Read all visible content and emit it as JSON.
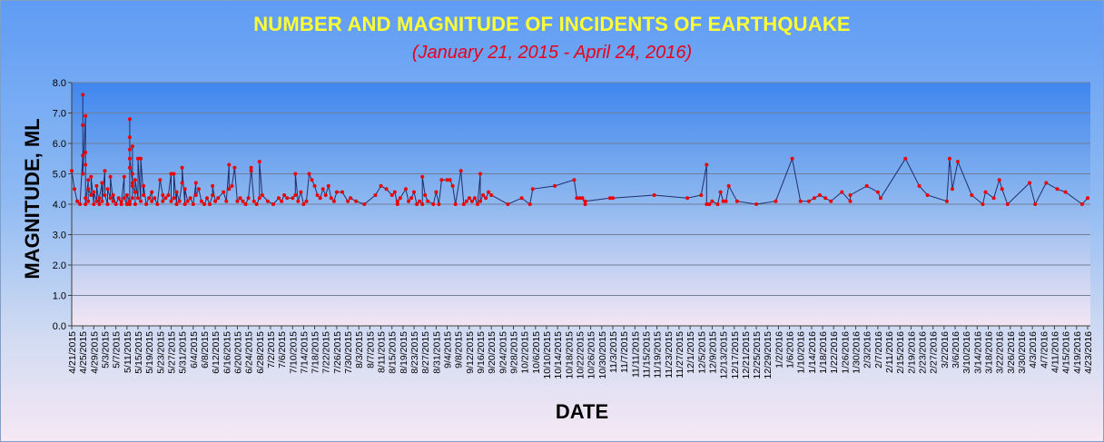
{
  "chart_data": {
    "type": "line",
    "title": "NUMBER AND MAGNITUDE OF INCIDENTS OF EARTHQUAKE",
    "subtitle": "(January 21, 2015 - April 24, 2016)",
    "xlabel": "DATE",
    "ylabel": "MAGNITUDE, ML",
    "ylim": [
      0,
      8
    ],
    "yticks": [
      "0.0",
      "1.0",
      "2.0",
      "3.0",
      "4.0",
      "5.0",
      "6.0",
      "7.0",
      "8.0"
    ],
    "xlim": [
      "2015-04-21",
      "2016-04-24"
    ],
    "xtick_start": "2015-04-21",
    "xtick_step_days": 4,
    "grid": true,
    "legend": "none",
    "colors": {
      "line": "#1f2f6b",
      "marker": "#ee0000",
      "grid": "#6f7f99",
      "axis": "#404040",
      "plot_top": "#3f86ee"
    },
    "series": [
      {
        "points": [
          [
            "2015-04-21",
            5.1
          ],
          [
            "2015-04-22",
            4.5
          ],
          [
            "2015-04-23",
            4.1
          ],
          [
            "2015-04-24",
            4.0
          ],
          [
            "2015-04-25",
            5.6
          ],
          [
            "2015-04-25",
            7.6
          ],
          [
            "2015-04-25",
            6.6
          ],
          [
            "2015-04-25",
            5.0
          ],
          [
            "2015-04-26",
            6.9
          ],
          [
            "2015-04-26",
            5.3
          ],
          [
            "2015-04-26",
            4.2
          ],
          [
            "2015-04-26",
            5.7
          ],
          [
            "2015-04-26",
            4.0
          ],
          [
            "2015-04-27",
            4.8
          ],
          [
            "2015-04-27",
            4.1
          ],
          [
            "2015-04-27",
            4.5
          ],
          [
            "2015-04-28",
            4.3
          ],
          [
            "2015-04-28",
            4.9
          ],
          [
            "2015-04-29",
            4.0
          ],
          [
            "2015-04-29",
            4.4
          ],
          [
            "2015-04-30",
            4.1
          ],
          [
            "2015-04-30",
            4.6
          ],
          [
            "2015-05-01",
            4.0
          ],
          [
            "2015-05-01",
            4.2
          ],
          [
            "2015-05-02",
            4.7
          ],
          [
            "2015-05-02",
            4.1
          ],
          [
            "2015-05-03",
            5.1
          ],
          [
            "2015-05-03",
            4.3
          ],
          [
            "2015-05-04",
            4.0
          ],
          [
            "2015-05-04",
            4.5
          ],
          [
            "2015-05-05",
            4.2
          ],
          [
            "2015-05-05",
            4.9
          ],
          [
            "2015-05-06",
            4.1
          ],
          [
            "2015-05-06",
            4.3
          ],
          [
            "2015-05-07",
            4.0
          ],
          [
            "2015-05-08",
            4.2
          ],
          [
            "2015-05-09",
            4.0
          ],
          [
            "2015-05-09",
            4.1
          ],
          [
            "2015-05-10",
            4.9
          ],
          [
            "2015-05-10",
            4.2
          ],
          [
            "2015-05-11",
            4.0
          ],
          [
            "2015-05-11",
            4.3
          ],
          [
            "2015-05-12",
            4.1
          ],
          [
            "2015-05-12",
            6.8
          ],
          [
            "2015-05-12",
            5.2
          ],
          [
            "2015-05-12",
            4.0
          ],
          [
            "2015-05-12",
            6.2
          ],
          [
            "2015-05-12",
            5.8
          ],
          [
            "2015-05-12",
            5.5
          ],
          [
            "2015-05-13",
            4.7
          ],
          [
            "2015-05-13",
            4.2
          ],
          [
            "2015-05-13",
            5.9
          ],
          [
            "2015-05-13",
            5.0
          ],
          [
            "2015-05-13",
            4.6
          ],
          [
            "2015-05-14",
            4.4
          ],
          [
            "2015-05-14",
            4.0
          ],
          [
            "2015-05-14",
            4.8
          ],
          [
            "2015-05-15",
            4.2
          ],
          [
            "2015-05-15",
            5.5
          ],
          [
            "2015-05-16",
            4.1
          ],
          [
            "2015-05-16",
            5.5
          ],
          [
            "2015-05-17",
            4.3
          ],
          [
            "2015-05-17",
            4.6
          ],
          [
            "2015-05-18",
            4.0
          ],
          [
            "2015-05-19",
            4.2
          ],
          [
            "2015-05-20",
            4.4
          ],
          [
            "2015-05-20",
            4.1
          ],
          [
            "2015-05-21",
            4.2
          ],
          [
            "2015-05-22",
            4.0
          ],
          [
            "2015-05-23",
            4.8
          ],
          [
            "2015-05-24",
            4.3
          ],
          [
            "2015-05-24",
            4.1
          ],
          [
            "2015-05-25",
            4.2
          ],
          [
            "2015-05-26",
            4.3
          ],
          [
            "2015-05-27",
            5.0
          ],
          [
            "2015-05-27",
            4.1
          ],
          [
            "2015-05-28",
            4.2
          ],
          [
            "2015-05-28",
            5.0
          ],
          [
            "2015-05-29",
            4.0
          ],
          [
            "2015-05-29",
            4.4
          ],
          [
            "2015-05-30",
            4.1
          ],
          [
            "2015-05-31",
            4.7
          ],
          [
            "2015-05-31",
            5.2
          ],
          [
            "2015-06-01",
            4.0
          ],
          [
            "2015-06-01",
            4.5
          ],
          [
            "2015-06-02",
            4.1
          ],
          [
            "2015-06-03",
            4.2
          ],
          [
            "2015-06-04",
            4.0
          ],
          [
            "2015-06-05",
            4.7
          ],
          [
            "2015-06-05",
            4.3
          ],
          [
            "2015-06-06",
            4.5
          ],
          [
            "2015-06-07",
            4.1
          ],
          [
            "2015-06-08",
            4.0
          ],
          [
            "2015-06-09",
            4.2
          ],
          [
            "2015-06-10",
            4.0
          ],
          [
            "2015-06-11",
            4.3
          ],
          [
            "2015-06-11",
            4.6
          ],
          [
            "2015-06-12",
            4.1
          ],
          [
            "2015-06-13",
            4.2
          ],
          [
            "2015-06-15",
            4.4
          ],
          [
            "2015-06-16",
            4.1
          ],
          [
            "2015-06-17",
            5.3
          ],
          [
            "2015-06-17",
            4.5
          ],
          [
            "2015-06-18",
            4.6
          ],
          [
            "2015-06-19",
            5.2
          ],
          [
            "2015-06-20",
            4.1
          ],
          [
            "2015-06-21",
            4.2
          ],
          [
            "2015-06-22",
            4.1
          ],
          [
            "2015-06-23",
            4.0
          ],
          [
            "2015-06-24",
            4.2
          ],
          [
            "2015-06-25",
            5.1
          ],
          [
            "2015-06-25",
            5.2
          ],
          [
            "2015-06-26",
            4.1
          ],
          [
            "2015-06-27",
            4.0
          ],
          [
            "2015-06-28",
            4.2
          ],
          [
            "2015-06-28",
            5.4
          ],
          [
            "2015-06-29",
            4.3
          ],
          [
            "2015-07-01",
            4.1
          ],
          [
            "2015-07-03",
            4.0
          ],
          [
            "2015-07-05",
            4.2
          ],
          [
            "2015-07-06",
            4.1
          ],
          [
            "2015-07-07",
            4.3
          ],
          [
            "2015-07-08",
            4.2
          ],
          [
            "2015-07-10",
            4.2
          ],
          [
            "2015-07-11",
            4.3
          ],
          [
            "2015-07-11",
            5.0
          ],
          [
            "2015-07-12",
            4.1
          ],
          [
            "2015-07-13",
            4.4
          ],
          [
            "2015-07-14",
            4.0
          ],
          [
            "2015-07-15",
            4.1
          ],
          [
            "2015-07-16",
            5.0
          ],
          [
            "2015-07-17",
            4.8
          ],
          [
            "2015-07-18",
            4.6
          ],
          [
            "2015-07-19",
            4.3
          ],
          [
            "2015-07-20",
            4.2
          ],
          [
            "2015-07-21",
            4.5
          ],
          [
            "2015-07-22",
            4.3
          ],
          [
            "2015-07-23",
            4.6
          ],
          [
            "2015-07-24",
            4.2
          ],
          [
            "2015-07-25",
            4.1
          ],
          [
            "2015-07-26",
            4.4
          ],
          [
            "2015-07-28",
            4.4
          ],
          [
            "2015-07-30",
            4.1
          ],
          [
            "2015-07-31",
            4.2
          ],
          [
            "2015-08-02",
            4.1
          ],
          [
            "2015-08-05",
            4.0
          ],
          [
            "2015-08-09",
            4.3
          ],
          [
            "2015-08-11",
            4.6
          ],
          [
            "2015-08-13",
            4.5
          ],
          [
            "2015-08-15",
            4.3
          ],
          [
            "2015-08-16",
            4.4
          ],
          [
            "2015-08-17",
            4.0
          ],
          [
            "2015-08-17",
            4.1
          ],
          [
            "2015-08-18",
            4.2
          ],
          [
            "2015-08-20",
            4.5
          ],
          [
            "2015-08-21",
            4.1
          ],
          [
            "2015-08-22",
            4.2
          ],
          [
            "2015-08-23",
            4.4
          ],
          [
            "2015-08-24",
            4.0
          ],
          [
            "2015-08-25",
            4.1
          ],
          [
            "2015-08-26",
            4.0
          ],
          [
            "2015-08-26",
            4.9
          ],
          [
            "2015-08-27",
            4.3
          ],
          [
            "2015-08-28",
            4.1
          ],
          [
            "2015-08-30",
            4.0
          ],
          [
            "2015-08-31",
            4.4
          ],
          [
            "2015-09-01",
            4.0
          ],
          [
            "2015-09-02",
            4.8
          ],
          [
            "2015-09-04",
            4.8
          ],
          [
            "2015-09-05",
            4.8
          ],
          [
            "2015-09-06",
            4.6
          ],
          [
            "2015-09-07",
            4.0
          ],
          [
            "2015-09-09",
            5.1
          ],
          [
            "2015-09-10",
            4.0
          ],
          [
            "2015-09-11",
            4.1
          ],
          [
            "2015-09-12",
            4.2
          ],
          [
            "2015-09-13",
            4.1
          ],
          [
            "2015-09-14",
            4.2
          ],
          [
            "2015-09-15",
            4.0
          ],
          [
            "2015-09-16",
            5.0
          ],
          [
            "2015-09-16",
            4.1
          ],
          [
            "2015-09-17",
            4.3
          ],
          [
            "2015-09-18",
            4.2
          ],
          [
            "2015-09-19",
            4.4
          ],
          [
            "2015-09-20",
            4.3
          ],
          [
            "2015-09-26",
            4.0
          ],
          [
            "2015-10-01",
            4.2
          ],
          [
            "2015-10-04",
            4.0
          ],
          [
            "2015-10-05",
            4.5
          ],
          [
            "2015-10-13",
            4.6
          ],
          [
            "2015-10-20",
            4.8
          ],
          [
            "2015-10-21",
            4.2
          ],
          [
            "2015-10-22",
            4.2
          ],
          [
            "2015-10-23",
            4.2
          ],
          [
            "2015-10-24",
            4.0
          ],
          [
            "2015-10-24",
            4.1
          ],
          [
            "2015-11-02",
            4.2
          ],
          [
            "2015-11-03",
            4.2
          ],
          [
            "2015-11-18",
            4.3
          ],
          [
            "2015-11-30",
            4.2
          ],
          [
            "2015-12-05",
            4.3
          ],
          [
            "2015-12-07",
            5.3
          ],
          [
            "2015-12-07",
            4.0
          ],
          [
            "2015-12-08",
            4.0
          ],
          [
            "2015-12-09",
            4.1
          ],
          [
            "2015-12-11",
            4.0
          ],
          [
            "2015-12-12",
            4.4
          ],
          [
            "2015-12-13",
            4.1
          ],
          [
            "2015-12-14",
            4.1
          ],
          [
            "2015-12-15",
            4.6
          ],
          [
            "2015-12-18",
            4.1
          ],
          [
            "2015-12-25",
            4.0
          ],
          [
            "2016-01-01",
            4.1
          ],
          [
            "2016-01-07",
            5.5
          ],
          [
            "2016-01-10",
            4.1
          ],
          [
            "2016-01-13",
            4.1
          ],
          [
            "2016-01-15",
            4.2
          ],
          [
            "2016-01-17",
            4.3
          ],
          [
            "2016-01-19",
            4.2
          ],
          [
            "2016-01-21",
            4.1
          ],
          [
            "2016-01-25",
            4.4
          ],
          [
            "2016-01-28",
            4.1
          ],
          [
            "2016-01-28",
            4.3
          ],
          [
            "2016-02-03",
            4.6
          ],
          [
            "2016-02-07",
            4.4
          ],
          [
            "2016-02-08",
            4.2
          ],
          [
            "2016-02-17",
            5.5
          ],
          [
            "2016-02-22",
            4.6
          ],
          [
            "2016-02-25",
            4.3
          ],
          [
            "2016-03-03",
            4.1
          ],
          [
            "2016-03-04",
            5.5
          ],
          [
            "2016-03-05",
            4.5
          ],
          [
            "2016-03-07",
            5.4
          ],
          [
            "2016-03-12",
            4.3
          ],
          [
            "2016-03-16",
            4.0
          ],
          [
            "2016-03-17",
            4.4
          ],
          [
            "2016-03-20",
            4.2
          ],
          [
            "2016-03-22",
            4.8
          ],
          [
            "2016-03-23",
            4.5
          ],
          [
            "2016-03-25",
            4.0
          ],
          [
            "2016-04-02",
            4.7
          ],
          [
            "2016-04-04",
            4.0
          ],
          [
            "2016-04-08",
            4.7
          ],
          [
            "2016-04-12",
            4.5
          ],
          [
            "2016-04-15",
            4.4
          ],
          [
            "2016-04-21",
            4.0
          ],
          [
            "2016-04-23",
            4.2
          ]
        ]
      }
    ]
  }
}
